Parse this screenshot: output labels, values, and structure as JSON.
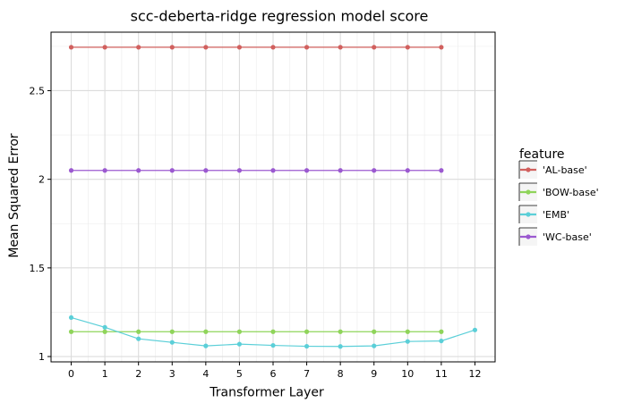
{
  "chart_data": {
    "type": "line",
    "title": "scc-deberta-ridge regression model score",
    "xlabel": "Transformer Layer",
    "ylabel": "Mean Squared Error",
    "xlim": [
      -0.6,
      12.6
    ],
    "ylim": [
      0.97,
      2.83
    ],
    "xticks": [
      0,
      1,
      2,
      3,
      4,
      5,
      6,
      7,
      8,
      9,
      10,
      11,
      12
    ],
    "xtick_labels": [
      "0",
      "1",
      "2",
      "3",
      "4",
      "5",
      "6",
      "7",
      "8",
      "9",
      "10",
      "11",
      "12"
    ],
    "yticks": [
      1,
      1.5,
      2,
      2.5
    ],
    "ytick_labels": [
      "1",
      "1.5",
      "2",
      "2.5"
    ],
    "grid": true,
    "legend": {
      "title": "feature",
      "position": "right"
    },
    "series": [
      {
        "name": "'AL-base'",
        "color": "#d1605e",
        "x": [
          0,
          1,
          2,
          3,
          4,
          5,
          6,
          7,
          8,
          9,
          10,
          11
        ],
        "y": [
          2.745,
          2.745,
          2.745,
          2.745,
          2.745,
          2.745,
          2.745,
          2.745,
          2.745,
          2.745,
          2.745,
          2.745
        ]
      },
      {
        "name": "'BOW-base'",
        "color": "#8fd45a",
        "x": [
          0,
          1,
          2,
          3,
          4,
          5,
          6,
          7,
          8,
          9,
          10,
          11
        ],
        "y": [
          1.14,
          1.14,
          1.14,
          1.14,
          1.14,
          1.14,
          1.14,
          1.14,
          1.14,
          1.14,
          1.14,
          1.14
        ]
      },
      {
        "name": "'EMB'",
        "color": "#5bcfd8",
        "x": [
          0,
          1,
          2,
          3,
          4,
          5,
          6,
          7,
          8,
          9,
          10,
          11,
          12
        ],
        "y": [
          1.22,
          1.165,
          1.1,
          1.08,
          1.06,
          1.07,
          1.063,
          1.058,
          1.057,
          1.06,
          1.085,
          1.088,
          1.15
        ]
      },
      {
        "name": "'WC-base'",
        "color": "#9b59d0",
        "x": [
          0,
          1,
          2,
          3,
          4,
          5,
          6,
          7,
          8,
          9,
          10,
          11
        ],
        "y": [
          2.05,
          2.05,
          2.05,
          2.05,
          2.05,
          2.05,
          2.05,
          2.05,
          2.05,
          2.05,
          2.05,
          2.05
        ]
      }
    ]
  }
}
